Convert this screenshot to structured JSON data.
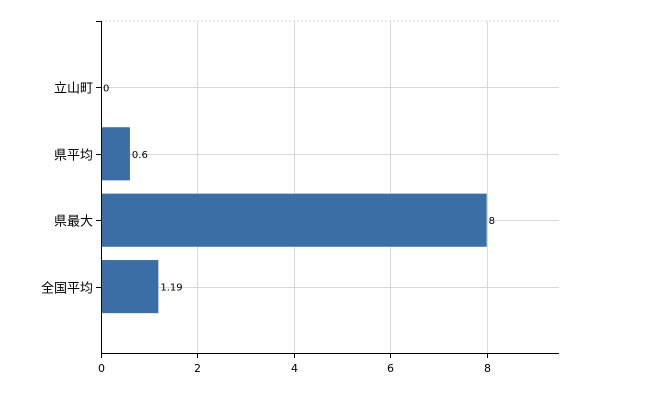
{
  "chart_data": {
    "type": "bar",
    "orientation": "horizontal",
    "categories": [
      "立山町",
      "県平均",
      "県最大",
      "全国平均"
    ],
    "values": [
      0,
      0.6,
      8,
      1.19
    ],
    "value_labels": [
      "0",
      "0.6",
      "8",
      "1.19"
    ],
    "xlim": [
      0,
      9.5
    ],
    "x_ticks": [
      0,
      2,
      4,
      6,
      8
    ],
    "x_tick_labels": [
      "0",
      "2",
      "4",
      "6",
      "8"
    ],
    "grid": true,
    "bar_color": "#3a6ea5",
    "grid_color": "#d9d9d9",
    "axis_color": "#000000"
  }
}
